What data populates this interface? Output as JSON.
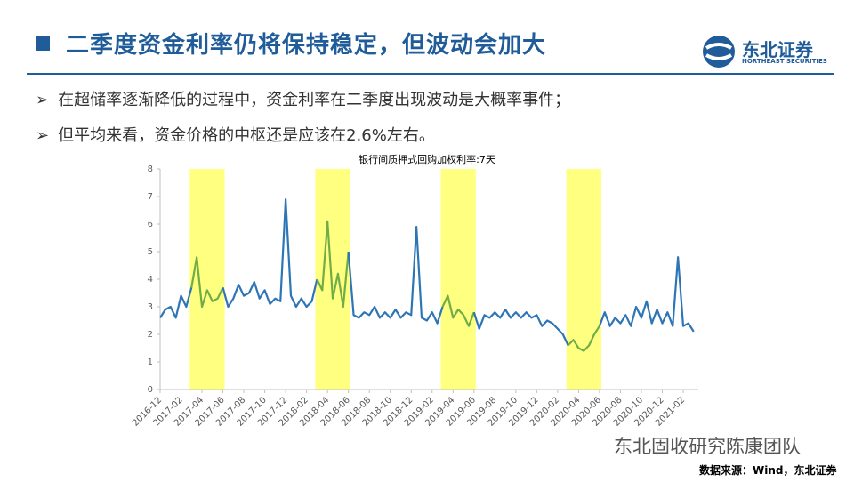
{
  "header": {
    "title": "二季度资金利率仍将保持稳定，但波动会加大",
    "logo_name": "东北证券",
    "logo_subtitle": "NORTHEAST SECURITIES"
  },
  "bullets": [
    "在超储率逐渐降低的过程中，资金利率在二季度出现波动是大概率事件；",
    "但平均来看，资金价格的中枢还是应该在2.6%左右。"
  ],
  "chart_data": {
    "type": "line",
    "title": "银行间质押式回购加权利率:7天",
    "categories": [
      "2016-12",
      null,
      null,
      null,
      "2017-02",
      null,
      null,
      null,
      "2017-04",
      null,
      null,
      null,
      "2017-06",
      null,
      null,
      null,
      "2017-08",
      null,
      null,
      null,
      "2017-10",
      null,
      null,
      null,
      "2017-12",
      null,
      null,
      null,
      "2018-02",
      null,
      null,
      null,
      "2018-04",
      null,
      null,
      null,
      "2018-06",
      null,
      null,
      null,
      "2018-08",
      null,
      null,
      null,
      "2018-10",
      null,
      null,
      null,
      "2018-12",
      null,
      null,
      null,
      "2019-02",
      null,
      null,
      null,
      "2019-04",
      null,
      null,
      null,
      "2019-06",
      null,
      null,
      null,
      "2019-08",
      null,
      null,
      null,
      "2019-10",
      null,
      null,
      null,
      "2019-12",
      null,
      null,
      null,
      "2020-02",
      null,
      null,
      null,
      "2020-04",
      null,
      null,
      null,
      "2020-06",
      null,
      null,
      null,
      "2020-08",
      null,
      null,
      null,
      "2020-10",
      null,
      null,
      null,
      "2020-12",
      null,
      null,
      null,
      "2021-02",
      null,
      null
    ],
    "series": [
      {
        "color": "#2e75b6",
        "highlight_color": "#70ad47",
        "values": [
          2.6,
          2.9,
          3.0,
          2.6,
          3.4,
          3.0,
          3.7,
          4.8,
          3.0,
          3.6,
          3.2,
          3.3,
          3.7,
          3.0,
          3.3,
          3.8,
          3.4,
          3.5,
          3.9,
          3.3,
          3.6,
          3.1,
          3.3,
          3.2,
          6.9,
          3.4,
          3.0,
          3.3,
          3.0,
          3.2,
          4.0,
          3.6,
          6.1,
          3.3,
          4.2,
          3.0,
          5.0,
          2.7,
          2.6,
          2.8,
          2.7,
          3.0,
          2.6,
          2.8,
          2.6,
          2.9,
          2.6,
          2.8,
          2.7,
          5.9,
          2.6,
          2.5,
          2.8,
          2.4,
          3.0,
          3.4,
          2.6,
          2.9,
          2.7,
          2.3,
          2.8,
          2.2,
          2.7,
          2.6,
          2.8,
          2.6,
          2.9,
          2.6,
          2.8,
          2.6,
          2.8,
          2.6,
          2.7,
          2.3,
          2.5,
          2.4,
          2.2,
          2.0,
          1.6,
          1.8,
          1.5,
          1.4,
          1.6,
          2.0,
          2.3,
          2.8,
          2.3,
          2.6,
          2.4,
          2.7,
          2.3,
          3.0,
          2.6,
          3.2,
          2.4,
          2.9,
          2.4,
          2.8,
          2.3,
          4.8,
          2.3,
          2.4,
          2.1
        ]
      }
    ],
    "highlights": [
      [
        6,
        12
      ],
      [
        30,
        36
      ],
      [
        54,
        60
      ],
      [
        78,
        84
      ]
    ],
    "highlight_fill": "#ffff80",
    "ylim": [
      0,
      8
    ],
    "yticks": [
      0,
      1,
      2,
      3,
      4,
      5,
      6,
      7,
      8
    ],
    "grid": false
  },
  "watermark": "东北固收研究陈康团队",
  "source": "数据来源：Wind，东北证券"
}
